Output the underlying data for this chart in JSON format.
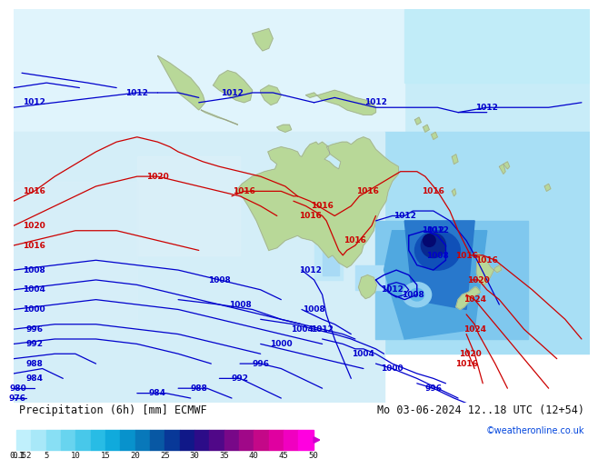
{
  "title_left": "Precipitation (6h) [mm] ECMWF",
  "title_right": "Mo 03-06-2024 12..18 UTC (12+54)",
  "copyright": "©weatheronline.co.uk",
  "colorbar_values": [
    0.1,
    0.5,
    1,
    2,
    5,
    10,
    15,
    20,
    25,
    30,
    35,
    40,
    45,
    50
  ],
  "map_bg": "#c8eef8",
  "land_color": "#b8d898",
  "contour_blue": "#0000cc",
  "contour_red": "#cc0000",
  "figure_bg": "#ffffff",
  "font_color": "#111111",
  "font_size_title": 8.5,
  "font_size_tick": 7,
  "font_size_copyright": 7,
  "xlim": [
    60,
    200
  ],
  "ylim": [
    -65,
    15
  ],
  "cbar_colors": [
    "#c0f0fc",
    "#a8e8f8",
    "#88dff4",
    "#68d4ef",
    "#48c8ea",
    "#28bce5",
    "#10aadc",
    "#0892cc",
    "#0878ba",
    "#0858a4",
    "#083898",
    "#101888",
    "#2c0c88",
    "#500888",
    "#780888",
    "#a00888",
    "#c40888",
    "#e000a0",
    "#f000c0",
    "#ff00e0"
  ],
  "precip_light": "#b8e8f8",
  "precip_med": "#78c8ec",
  "precip_dark": "#2868c8",
  "precip_vdark": "#0828a0",
  "precip_violet": "#6008c0"
}
